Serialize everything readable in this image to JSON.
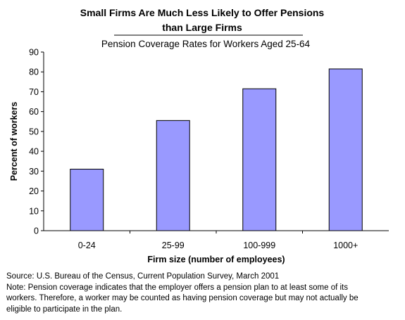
{
  "chart_data": {
    "type": "bar",
    "title_lines": [
      "Small Firms Are Much Less Likely to Offer Pensions",
      "than Large Firms"
    ],
    "subtitle": "Pension Coverage Rates for Workers Aged 25-64",
    "xlabel": "Firm size (number of employees)",
    "ylabel": "Percent of workers",
    "categories": [
      "0-24",
      "25-99",
      "100-999",
      "1000+"
    ],
    "values": [
      31,
      55.5,
      71.5,
      81.5
    ],
    "ylim": [
      0,
      90
    ],
    "yticks": [
      "0",
      "10",
      "20",
      "30",
      "40",
      "50",
      "60",
      "70",
      "80",
      "90"
    ],
    "bar_color": "#9999ff",
    "bar_edge_color": "#000000",
    "grid": false,
    "legend": "none"
  },
  "footnotes": [
    "Source: U.S. Bureau of the Census, Current Population Survey, March 2001",
    "Note: Pension coverage indicates that the employer offers a pension plan to at least some of its",
    "workers. Therefore, a worker may be counted as having pension coverage but may not actually be",
    "eligible to participate in the plan."
  ]
}
